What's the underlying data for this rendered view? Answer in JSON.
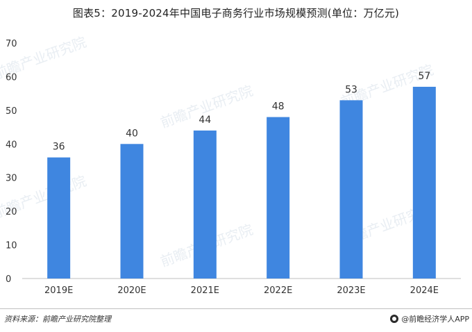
{
  "title": "图表5：2019-2024年中国电子商务行业市场规模预测(单位：万亿元)",
  "watermark": "前瞻产业研究院",
  "source": "资料来源：前瞻产业研究院整理",
  "brand": "@前瞻经济学人APP",
  "colors": {
    "bar": "#3f86e0",
    "axis": "#bfbfbf",
    "text": "#333333"
  },
  "chart_data": {
    "type": "bar",
    "title": "图表5：2019-2024年中国电子商务行业市场规模预测(单位：万亿元)",
    "xlabel": "",
    "ylabel": "",
    "categories": [
      "2019E",
      "2020E",
      "2021E",
      "2022E",
      "2023E",
      "2024E"
    ],
    "values": [
      36,
      40,
      44,
      48,
      53,
      57
    ],
    "data_labels": [
      "36",
      "40",
      "44",
      "48",
      "53",
      "57"
    ],
    "ylim": [
      0,
      70
    ],
    "yticks": [
      0,
      10,
      20,
      30,
      40,
      50,
      60,
      70
    ],
    "grid": false,
    "legend": "none"
  }
}
